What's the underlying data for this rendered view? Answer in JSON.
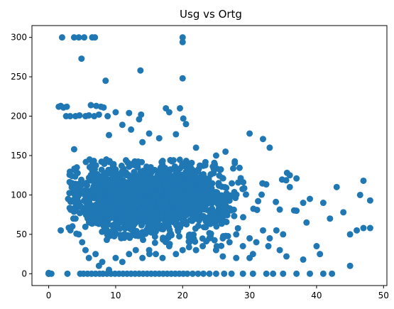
{
  "chart_data": {
    "type": "scatter",
    "title": "Usg vs Ortg",
    "xlabel": "",
    "ylabel": "",
    "xlim": [
      -2.5,
      50.5
    ],
    "ylim": [
      -15,
      315
    ],
    "xticks": [
      0,
      10,
      20,
      30,
      40,
      50
    ],
    "yticks": [
      0,
      50,
      100,
      150,
      200,
      250,
      300
    ],
    "grid": false,
    "marker_color": "#1f77b4",
    "series": [
      {
        "name": "",
        "color": "#1f77b4",
        "points": [
          [
            0,
            0
          ],
          [
            0,
            1
          ],
          [
            0,
            0
          ],
          [
            0,
            0
          ],
          [
            2.0,
            300
          ],
          [
            3.8,
            300
          ],
          [
            4.5,
            300
          ],
          [
            5.3,
            300
          ],
          [
            6.5,
            300
          ],
          [
            6.9,
            300
          ],
          [
            20.0,
            300
          ],
          [
            20.0,
            294
          ],
          [
            4.9,
            273
          ],
          [
            8.5,
            245
          ],
          [
            13.7,
            258
          ],
          [
            20.0,
            248
          ],
          [
            1.5,
            212
          ],
          [
            1.8,
            213
          ],
          [
            2.2,
            211
          ],
          [
            2.7,
            212
          ],
          [
            6.3,
            214
          ],
          [
            7.1,
            213
          ],
          [
            7.8,
            212
          ],
          [
            8.2,
            211
          ],
          [
            2.6,
            200
          ],
          [
            3.2,
            200
          ],
          [
            4.0,
            200
          ],
          [
            4.6,
            201
          ],
          [
            5.5,
            200
          ],
          [
            6.0,
            201
          ],
          [
            6.8,
            200
          ],
          [
            7.5,
            202
          ],
          [
            8.8,
            200
          ],
          [
            10.0,
            205
          ],
          [
            12.0,
            204
          ],
          [
            13.8,
            202
          ],
          [
            13.5,
            196
          ],
          [
            17.5,
            210
          ],
          [
            18.0,
            205
          ],
          [
            19.6,
            210
          ],
          [
            20.1,
            197
          ],
          [
            11.0,
            189
          ],
          [
            12.3,
            183
          ],
          [
            15.0,
            178
          ],
          [
            16.5,
            172
          ],
          [
            19.0,
            177
          ],
          [
            20.5,
            190
          ],
          [
            30.0,
            178
          ],
          [
            32.0,
            171
          ],
          [
            9.0,
            176
          ],
          [
            14.0,
            167
          ],
          [
            22.0,
            160
          ],
          [
            25.0,
            150
          ],
          [
            26.4,
            155
          ],
          [
            33.0,
            160
          ],
          [
            36.0,
            125
          ],
          [
            37.0,
            121
          ],
          [
            0.4,
            0
          ],
          [
            2.8,
            0
          ],
          [
            4.7,
            0
          ],
          [
            5.2,
            0
          ],
          [
            5.8,
            0
          ],
          [
            6.4,
            0
          ],
          [
            7.0,
            0
          ],
          [
            7.6,
            0
          ],
          [
            8.1,
            0
          ],
          [
            8.7,
            0
          ],
          [
            9.3,
            0
          ],
          [
            9.9,
            0
          ],
          [
            10.5,
            0
          ],
          [
            11.1,
            0
          ],
          [
            11.7,
            0
          ],
          [
            12.3,
            0
          ],
          [
            12.9,
            0
          ],
          [
            13.5,
            0
          ],
          [
            14.1,
            0
          ],
          [
            14.7,
            0
          ],
          [
            15.3,
            0
          ],
          [
            15.9,
            0
          ],
          [
            16.5,
            0
          ],
          [
            17.1,
            0
          ],
          [
            17.7,
            0
          ],
          [
            18.3,
            0
          ],
          [
            18.9,
            0
          ],
          [
            19.5,
            0
          ],
          [
            20.1,
            0
          ],
          [
            20.7,
            0
          ],
          [
            21.5,
            0
          ],
          [
            22.3,
            0
          ],
          [
            23.1,
            0
          ],
          [
            24.0,
            0
          ],
          [
            25.0,
            0
          ],
          [
            26.2,
            0
          ],
          [
            27.3,
            0
          ],
          [
            29.0,
            0
          ],
          [
            30.5,
            0
          ],
          [
            32.5,
            0
          ],
          [
            33.5,
            0
          ],
          [
            35.0,
            0
          ],
          [
            37.0,
            0
          ],
          [
            39.0,
            0
          ],
          [
            41.0,
            0
          ],
          [
            42.3,
            0
          ],
          [
            1.8,
            55
          ],
          [
            3.1,
            58
          ],
          [
            2.9,
            95
          ],
          [
            3.5,
            115
          ],
          [
            3.8,
            158
          ],
          [
            4.2,
            135
          ],
          [
            4.0,
            70
          ],
          [
            4.5,
            50
          ],
          [
            5.0,
            40
          ],
          [
            5.5,
            30
          ],
          [
            6.1,
            145
          ],
          [
            6.0,
            20
          ],
          [
            7.0,
            25
          ],
          [
            7.5,
            10
          ],
          [
            8.0,
            15
          ],
          [
            8.6,
            145
          ],
          [
            9.0,
            5
          ],
          [
            10.0,
            20
          ],
          [
            11.0,
            15
          ],
          [
            12.0,
            25
          ],
          [
            13.0,
            30
          ],
          [
            14.0,
            20
          ],
          [
            15.0,
            30
          ],
          [
            16.0,
            25
          ],
          [
            17.0,
            20
          ],
          [
            18.0,
            35
          ],
          [
            19.0,
            25
          ],
          [
            20.0,
            30
          ],
          [
            21.0,
            40
          ],
          [
            22.0,
            30
          ],
          [
            23.0,
            35
          ],
          [
            24.0,
            45
          ],
          [
            25.0,
            30
          ],
          [
            26.0,
            45
          ],
          [
            27.0,
            40
          ],
          [
            28.0,
            50
          ],
          [
            29.0,
            35
          ],
          [
            30.0,
            45
          ],
          [
            31.0,
            40
          ],
          [
            32.0,
            55
          ],
          [
            33.0,
            45
          ],
          [
            34.0,
            55
          ],
          [
            35.0,
            50
          ],
          [
            36.0,
            110
          ],
          [
            37.0,
            80
          ],
          [
            38.0,
            90
          ],
          [
            38.5,
            65
          ],
          [
            39.0,
            95
          ],
          [
            40.0,
            35
          ],
          [
            40.5,
            25
          ],
          [
            41.0,
            90
          ],
          [
            42.0,
            70
          ],
          [
            43.0,
            110
          ],
          [
            44.0,
            78
          ],
          [
            45.0,
            50
          ],
          [
            45.0,
            10
          ],
          [
            46.0,
            55
          ],
          [
            46.5,
            100
          ],
          [
            47.0,
            118
          ],
          [
            48.0,
            93
          ],
          [
            47.0,
            58
          ],
          [
            48.0,
            58
          ],
          [
            30.5,
            25
          ],
          [
            32.8,
            35
          ],
          [
            35.5,
            22
          ],
          [
            38.0,
            18
          ],
          [
            26.0,
            22
          ],
          [
            28.0,
            20
          ],
          [
            34.5,
            30
          ],
          [
            30.0,
            20
          ]
        ]
      }
    ],
    "dense_cloud": {
      "x_range": [
        3,
        37
      ],
      "y_range": [
        25,
        145
      ],
      "center_x": 15,
      "center_y": 95,
      "count": 1800
    }
  }
}
